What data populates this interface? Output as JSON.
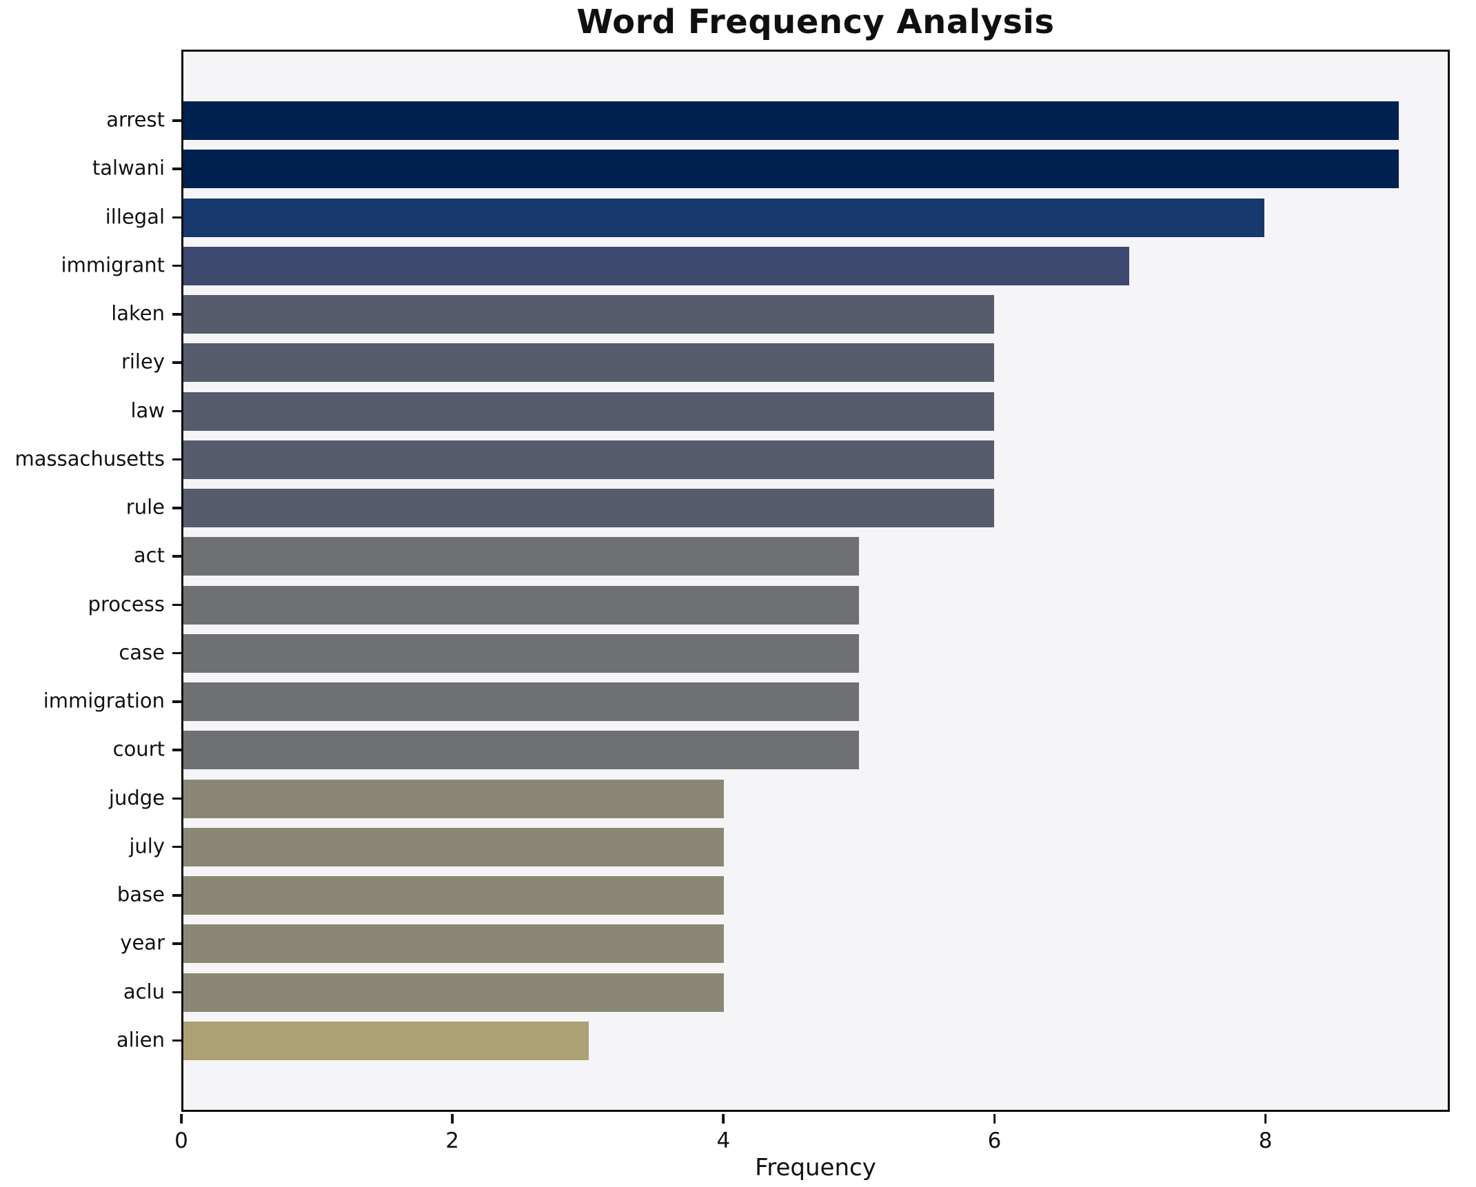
{
  "chart_data": {
    "type": "bar",
    "orientation": "horizontal",
    "title": "Word Frequency Analysis",
    "xlabel": "Frequency",
    "ylabel": "",
    "categories": [
      "arrest",
      "talwani",
      "illegal",
      "immigrant",
      "laken",
      "riley",
      "law",
      "massachusetts",
      "rule",
      "act",
      "process",
      "case",
      "immigration",
      "court",
      "judge",
      "july",
      "base",
      "year",
      "aclu",
      "alien"
    ],
    "values": [
      9,
      9,
      8,
      7,
      6,
      6,
      6,
      6,
      6,
      5,
      5,
      5,
      5,
      5,
      4,
      4,
      4,
      4,
      4,
      3
    ],
    "bar_colors": [
      "#012151",
      "#012151",
      "#17396d",
      "#3d486e",
      "#565c6c",
      "#565c6c",
      "#565c6c",
      "#565c6c",
      "#565c6c",
      "#6f7071",
      "#6f7071",
      "#6f7071",
      "#6f7071",
      "#6f7071",
      "#8a8875",
      "#8a8875",
      "#8a8875",
      "#8a8875",
      "#8a8875",
      "#aba173"
    ],
    "xticks": [
      "0",
      "2",
      "4",
      "6",
      "8"
    ],
    "xtick_values": [
      0,
      2,
      4,
      6,
      8
    ],
    "xlim": [
      0,
      9.36
    ],
    "grid": false,
    "legend": false,
    "plot_background": "#f5f4f6",
    "figure_background": "#ffffff",
    "frame_color": "#0d0d0d"
  }
}
